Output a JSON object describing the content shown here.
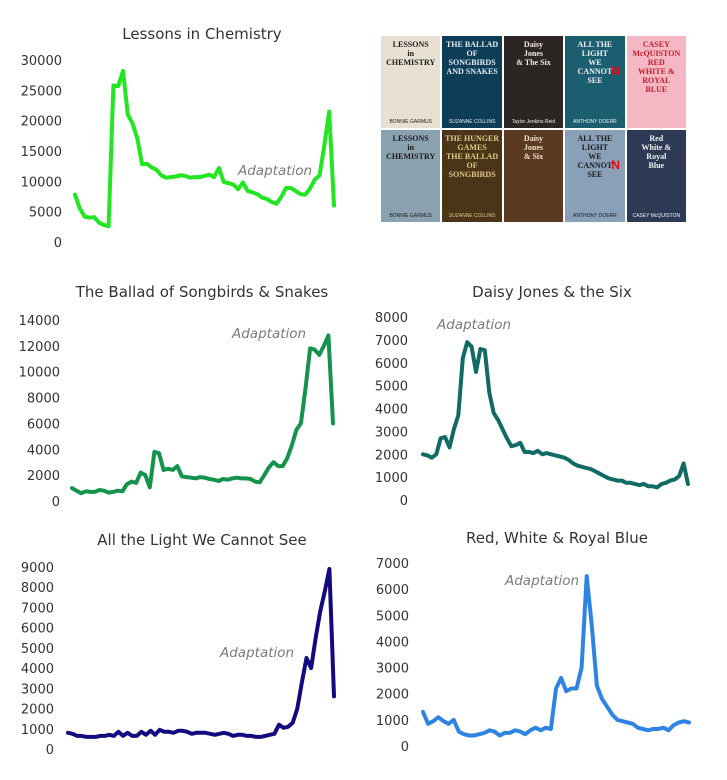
{
  "chart_data": [
    {
      "type": "line",
      "title": "Lessons in Chemistry",
      "color": "#22e622",
      "yticks": [
        0,
        5000,
        10000,
        15000,
        20000,
        25000,
        30000
      ],
      "ylim": [
        0,
        30000
      ],
      "annotation": "Adaptation",
      "values": [
        7800,
        5500,
        4200,
        4000,
        4100,
        3200,
        2800,
        2600,
        25800,
        25700,
        28200,
        21000,
        19500,
        17000,
        12800,
        12900,
        12300,
        11900,
        11000,
        10600,
        10700,
        10800,
        11000,
        10900,
        10600,
        10700,
        10700,
        10900,
        11100,
        10700,
        12200,
        9900,
        9700,
        9500,
        8700,
        9800,
        8400,
        8200,
        7900,
        7300,
        7100,
        6600,
        6300,
        7400,
        8900,
        8900,
        8400,
        7900,
        7800,
        8800,
        10300,
        11000,
        16000,
        21500,
        6000
      ]
    },
    {
      "type": "line",
      "title": "The Ballad of Songbirds & Snakes",
      "color": "#13934b",
      "yticks": [
        0,
        2000,
        4000,
        6000,
        8000,
        10000,
        12000,
        14000
      ],
      "ylim": [
        0,
        14000
      ],
      "annotation": "Adaptation",
      "values": [
        1000,
        800,
        600,
        750,
        700,
        700,
        850,
        800,
        650,
        700,
        800,
        750,
        1300,
        1500,
        1400,
        2200,
        2000,
        1050,
        3800,
        3700,
        2400,
        2500,
        2400,
        2700,
        1900,
        1850,
        1800,
        1750,
        1850,
        1800,
        1700,
        1650,
        1550,
        1700,
        1650,
        1750,
        1800,
        1750,
        1750,
        1700,
        1500,
        1450,
        2000,
        2600,
        3000,
        2700,
        2700,
        3300,
        4300,
        5500,
        6000,
        8700,
        11800,
        11700,
        11300,
        12000,
        12800,
        6000
      ]
    },
    {
      "type": "line",
      "title": "Daisy Jones & the Six",
      "color": "#126a65",
      "yticks": [
        0,
        1000,
        2000,
        3000,
        4000,
        5000,
        6000,
        7000,
        8000
      ],
      "ylim": [
        0,
        8000
      ],
      "annotation": "Adaptation",
      "values": [
        2000,
        1950,
        1850,
        2000,
        2700,
        2750,
        2300,
        3100,
        3700,
        6200,
        6900,
        6700,
        5600,
        6600,
        6550,
        4700,
        3800,
        3500,
        3100,
        2700,
        2350,
        2400,
        2500,
        2100,
        2100,
        2050,
        2150,
        2000,
        2050,
        2000,
        1950,
        1900,
        1850,
        1750,
        1600,
        1500,
        1450,
        1400,
        1350,
        1250,
        1150,
        1050,
        950,
        900,
        850,
        850,
        750,
        750,
        700,
        650,
        700,
        600,
        600,
        550,
        700,
        750,
        850,
        900,
        1050,
        1600,
        700
      ]
    },
    {
      "type": "line",
      "title": "All the Light We Cannot See",
      "color": "#140a80",
      "yticks": [
        0,
        1000,
        2000,
        3000,
        4000,
        5000,
        6000,
        7000,
        8000,
        9000
      ],
      "ylim": [
        0,
        9000
      ],
      "annotation": "Adaptation",
      "values": [
        800,
        750,
        650,
        650,
        600,
        600,
        600,
        650,
        650,
        700,
        650,
        850,
        650,
        800,
        650,
        650,
        850,
        700,
        900,
        700,
        950,
        850,
        850,
        800,
        900,
        900,
        850,
        750,
        800,
        800,
        800,
        750,
        700,
        750,
        800,
        750,
        650,
        700,
        700,
        650,
        650,
        600,
        600,
        650,
        700,
        750,
        1200,
        1050,
        1100,
        1300,
        2000,
        3300,
        4500,
        4000,
        5500,
        6800,
        7800,
        8900,
        2600
      ]
    },
    {
      "type": "line",
      "title": "Red, White & Royal Blue",
      "color": "#2f84e3",
      "yticks": [
        0,
        1000,
        2000,
        3000,
        4000,
        5000,
        6000,
        7000
      ],
      "ylim": [
        0,
        7000
      ],
      "annotation": "Adaptation",
      "values": [
        1300,
        850,
        950,
        1100,
        950,
        850,
        1000,
        550,
        450,
        400,
        400,
        450,
        500,
        600,
        550,
        400,
        500,
        500,
        600,
        550,
        450,
        600,
        700,
        600,
        700,
        650,
        2200,
        2600,
        2100,
        2200,
        2200,
        3000,
        6500,
        4600,
        2300,
        1800,
        1500,
        1200,
        1000,
        950,
        900,
        850,
        700,
        650,
        600,
        650,
        650,
        700,
        600,
        800,
        900,
        950,
        900
      ]
    }
  ],
  "covers": [
    {
      "lines": "LESSONS\nin\nCHEMISTRY",
      "author": "BONNIE GARMUS",
      "bg": "#e8e1d3",
      "fg": "#1a1a1a"
    },
    {
      "lines": "THE BALLAD OF\nSONGBIRDS\nAND SNAKES",
      "author": "SUZANNE COLLINS",
      "bg": "#0d3d57",
      "fg": "#e6eef2"
    },
    {
      "lines": "Daisy\nJones\n& The Six",
      "author": "Taylor Jenkins Reid",
      "bg": "#2b2623",
      "fg": "#f4ede4"
    },
    {
      "lines": "ALL THE\nLIGHT\nWE\nCANNOT\nSEE",
      "author": "ANTHONY DOERR",
      "bg": "#1b5e70",
      "fg": "#f2f2f2",
      "netflix": "N"
    },
    {
      "lines": "CASEY McQUISTON\nRED\nWHITE &\nROYAL\nBLUE",
      "author": "",
      "bg": "#f6b7c4",
      "fg": "#c1202c"
    },
    {
      "lines": "LESSONS\nin\nCHEMISTRY",
      "author": "BONNIE GARMUS",
      "bg": "#8aa1b0",
      "fg": "#1a1a1a"
    },
    {
      "lines": "THE HUNGER GAMES\nTHE BALLAD OF\nSONGBIRDS",
      "author": "SUZANNE COLLINS",
      "bg": "#4a3518",
      "fg": "#e0c98a"
    },
    {
      "lines": "Daisy\nJones\n& Six",
      "author": "",
      "bg": "#5c3a22",
      "fg": "#f0e0c8"
    },
    {
      "lines": "ALL THE\nLIGHT\nWE\nCANNOT\nSEE",
      "author": "ANTHONY DOERR",
      "bg": "#8aa0b8",
      "fg": "#1a1a1a",
      "netflix": "N"
    },
    {
      "lines": "Red\nWhite &\nRoyal\nBlue",
      "author": "CASEY McQUISTON",
      "bg": "#2e3a55",
      "fg": "#f2f2f2"
    }
  ]
}
